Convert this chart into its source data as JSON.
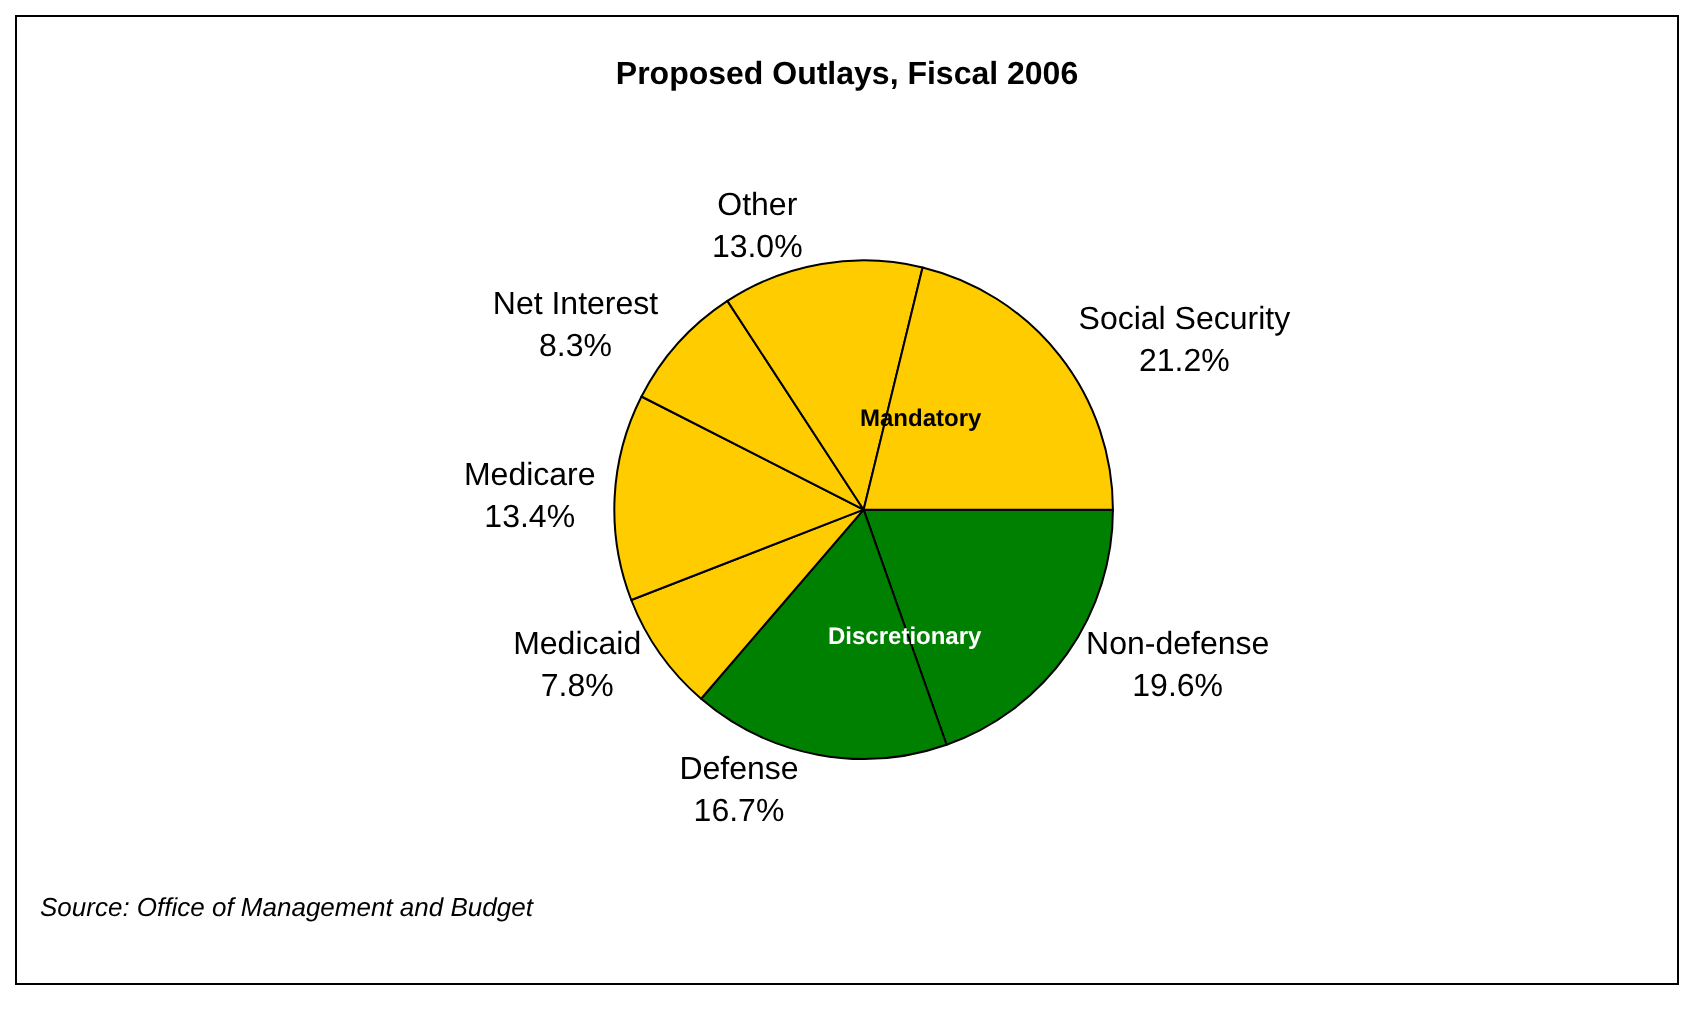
{
  "chart_data": {
    "type": "pie",
    "title": "Proposed Outlays, Fiscal 2006",
    "categories": [
      "Non-defense",
      "Defense",
      "Medicaid",
      "Medicare",
      "Net Interest",
      "Other",
      "Social Security"
    ],
    "values": [
      19.6,
      16.7,
      7.8,
      13.4,
      8.3,
      13.0,
      21.2
    ],
    "colors": [
      "#008000",
      "#008000",
      "#ffcc00",
      "#ffcc00",
      "#ffcc00",
      "#ffcc00",
      "#ffcc00"
    ],
    "value_labels": [
      "19.6%",
      "16.7%",
      "7.8%",
      "13.4%",
      "8.3%",
      "13.0%",
      "21.2%"
    ],
    "annotations": [
      "Mandatory",
      "Discretionary",
      "Source: Office of Management and Budget"
    ]
  }
}
